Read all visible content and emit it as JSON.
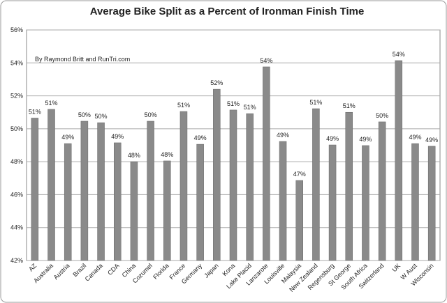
{
  "chart_data": {
    "type": "bar",
    "title": "Average Bike Split as a Percent of Ironman Finish Time",
    "annotation": "By Raymond Britt and RunTri.com",
    "categories": [
      "AZ",
      "Australia",
      "Austria",
      "Brazil",
      "Canada",
      "CDA",
      "China",
      "Cozumel",
      "Florida",
      "France",
      "Germany",
      "Japan",
      "Kona",
      "Lake Placid",
      "Lanzarote",
      "Louisville",
      "Malaysia",
      "New Zealand",
      "Regensburg",
      "St George",
      "South Africa",
      "Switzerland",
      "UK",
      "W Aust",
      "Wisconsin"
    ],
    "values": [
      50.65,
      51.18,
      49.1,
      50.46,
      50.37,
      49.15,
      48.0,
      50.46,
      48.05,
      51.05,
      49.06,
      52.4,
      51.14,
      50.92,
      53.76,
      49.23,
      46.86,
      51.22,
      49.02,
      51.0,
      48.98,
      50.42,
      54.14,
      49.1,
      48.94
    ],
    "value_labels": [
      "51%",
      "51%",
      "49%",
      "50%",
      "50%",
      "49%",
      "48%",
      "50%",
      "48%",
      "51%",
      "49%",
      "52%",
      "51%",
      "51%",
      "54%",
      "49%",
      "47%",
      "51%",
      "49%",
      "51%",
      "49%",
      "50%",
      "54%",
      "49%",
      "49%"
    ],
    "color": "#8a8a8a",
    "ylim": [
      42,
      56
    ],
    "yticks": [
      {
        "value": 42,
        "label": "42%"
      },
      {
        "value": 44,
        "label": "44%"
      },
      {
        "value": 46,
        "label": "46%"
      },
      {
        "value": 48,
        "label": "48%"
      },
      {
        "value": 50,
        "label": "50%"
      },
      {
        "value": 52,
        "label": "52%"
      },
      {
        "value": 54,
        "label": "54%"
      },
      {
        "value": 56,
        "label": "56%"
      }
    ],
    "grid": true
  }
}
